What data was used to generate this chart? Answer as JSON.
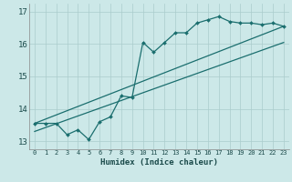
{
  "xlabel": "Humidex (Indice chaleur)",
  "ylabel": "",
  "xlim": [
    -0.5,
    23.5
  ],
  "ylim": [
    12.75,
    17.25
  ],
  "xticks": [
    0,
    1,
    2,
    3,
    4,
    5,
    6,
    7,
    8,
    9,
    10,
    11,
    12,
    13,
    14,
    15,
    16,
    17,
    18,
    19,
    20,
    21,
    22,
    23
  ],
  "yticks": [
    13,
    14,
    15,
    16,
    17
  ],
  "bg_color": "#cce8e8",
  "line_color": "#1a6e6e",
  "grid_color": "#aacccc",
  "line1_x": [
    0,
    1,
    2,
    3,
    4,
    5,
    6,
    7,
    8,
    9,
    10,
    11,
    12,
    13,
    14,
    15,
    16,
    17,
    18,
    19,
    20,
    21,
    22,
    23
  ],
  "line1_y": [
    13.55,
    13.55,
    13.55,
    13.2,
    13.35,
    13.05,
    13.6,
    13.75,
    14.4,
    14.35,
    16.05,
    15.75,
    16.05,
    16.35,
    16.35,
    16.65,
    16.75,
    16.85,
    16.7,
    16.65,
    16.65,
    16.6,
    16.65,
    16.55
  ],
  "line2_x": [
    0,
    23
  ],
  "line2_y": [
    13.55,
    16.55
  ],
  "line3_x": [
    0,
    23
  ],
  "line3_y": [
    13.3,
    16.05
  ]
}
